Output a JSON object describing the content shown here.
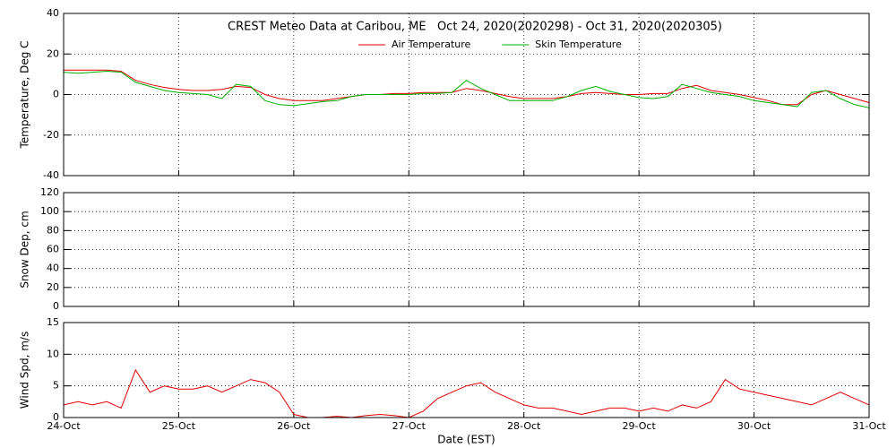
{
  "chart_data": [
    {
      "type": "line",
      "title": "CREST Meteo Data at Caribou, ME   Oct 24, 2020(2020298) - Oct 31, 2020(2020305)",
      "ylabel": "Temperature, Deg C",
      "x": [
        0,
        0.125,
        0.25,
        0.375,
        0.5,
        0.625,
        0.75,
        0.875,
        1,
        1.125,
        1.25,
        1.375,
        1.5,
        1.625,
        1.75,
        1.875,
        2,
        2.125,
        2.25,
        2.375,
        2.5,
        2.625,
        2.75,
        2.875,
        3,
        3.125,
        3.25,
        3.375,
        3.5,
        3.625,
        3.75,
        3.875,
        4,
        4.125,
        4.25,
        4.375,
        4.5,
        4.625,
        4.75,
        4.875,
        5,
        5.125,
        5.25,
        5.375,
        5.5,
        5.625,
        5.75,
        5.875,
        6,
        6.125,
        6.25,
        6.375,
        6.5,
        6.625,
        6.75,
        6.875,
        7
      ],
      "xlim": [
        0,
        7
      ],
      "ylim": [
        -40,
        40
      ],
      "yticks": [
        -40,
        -20,
        0,
        20,
        40
      ],
      "grid": true,
      "series": [
        {
          "name": "Air Temperature",
          "color": "#e00000",
          "values": [
            12,
            12,
            12,
            12,
            11.5,
            7,
            5,
            3.5,
            2.5,
            2,
            2,
            2.5,
            4,
            3.5,
            0,
            -2,
            -3,
            -3,
            -3,
            -2,
            -1,
            0,
            0,
            0.5,
            0.5,
            1,
            1,
            1,
            3,
            2,
            0.5,
            -1,
            -2,
            -2,
            -2,
            -1,
            0.5,
            1,
            0.5,
            0,
            0,
            0.5,
            0.5,
            3,
            4.5,
            2,
            1,
            0,
            -1.5,
            -3,
            -5,
            -5,
            0,
            2,
            0,
            -2,
            -4
          ]
        },
        {
          "name": "Skin Temperature",
          "color": "#00b000",
          "values": [
            11,
            10.5,
            11,
            11.5,
            11,
            6,
            4,
            2,
            1,
            0.5,
            0,
            -2,
            5,
            4,
            -3,
            -5,
            -5.5,
            -4.5,
            -3.5,
            -3,
            -1,
            0,
            0,
            0,
            0,
            0.5,
            0.5,
            1,
            7,
            3,
            0,
            -3,
            -3,
            -3,
            -3,
            -1,
            2,
            4,
            1.5,
            0,
            -1.5,
            -2,
            -1,
            5,
            3,
            1,
            0,
            -1,
            -3,
            -4,
            -5,
            -6,
            1,
            2,
            -2,
            -5,
            -6.5
          ]
        }
      ]
    },
    {
      "type": "line",
      "ylabel": "Snow Dep, cm",
      "x": [
        0,
        0.125,
        0.25,
        0.375,
        0.5,
        0.625,
        0.75,
        0.875,
        1,
        1.125,
        1.25,
        1.375,
        1.5,
        1.625,
        1.75,
        1.875,
        2,
        2.125,
        2.25,
        2.375,
        2.5,
        2.625,
        2.75,
        2.875,
        3,
        3.125,
        3.25,
        3.375,
        3.5,
        3.625,
        3.75,
        3.875,
        4,
        4.125,
        4.25,
        4.375,
        4.5,
        4.625,
        4.75,
        4.875,
        5,
        5.125,
        5.25,
        5.375,
        5.5,
        5.625,
        5.75,
        5.875,
        6,
        6.125,
        6.25,
        6.375,
        6.5,
        6.625,
        6.75,
        6.875,
        7
      ],
      "xlim": [
        0,
        7
      ],
      "ylim": [
        0,
        120
      ],
      "yticks": [
        0,
        20,
        40,
        60,
        80,
        100,
        120
      ],
      "grid": true,
      "series": [
        {
          "color": "#0000e0",
          "values": [
            0,
            0,
            0,
            0,
            0,
            0,
            0,
            0,
            0,
            0,
            0,
            0,
            0,
            0,
            0,
            0,
            0,
            0,
            0,
            0,
            0,
            0,
            0,
            0,
            0,
            0,
            0,
            0,
            0,
            0,
            0,
            0,
            0,
            0,
            0,
            0,
            0,
            0,
            0,
            0,
            0,
            0,
            0,
            0,
            0,
            0,
            0,
            0,
            0,
            0,
            0,
            0,
            0,
            0,
            0,
            0,
            0
          ]
        }
      ]
    },
    {
      "type": "line",
      "ylabel": "Wind Spd, m/s",
      "xlabel": "Date (EST)",
      "x": [
        0,
        0.125,
        0.25,
        0.375,
        0.5,
        0.625,
        0.75,
        0.875,
        1,
        1.125,
        1.25,
        1.375,
        1.5,
        1.625,
        1.75,
        1.875,
        2,
        2.125,
        2.25,
        2.375,
        2.5,
        2.625,
        2.75,
        2.875,
        3,
        3.125,
        3.25,
        3.375,
        3.5,
        3.625,
        3.75,
        3.875,
        4,
        4.125,
        4.25,
        4.375,
        4.5,
        4.625,
        4.75,
        4.875,
        5,
        5.125,
        5.25,
        5.375,
        5.5,
        5.625,
        5.75,
        5.875,
        6,
        6.125,
        6.25,
        6.375,
        6.5,
        6.625,
        6.75,
        6.875,
        7
      ],
      "xlim": [
        0,
        7
      ],
      "xticks": [
        {
          "value": 0,
          "label": "24-Oct"
        },
        {
          "value": 1,
          "label": "25-Oct"
        },
        {
          "value": 2,
          "label": "26-Oct"
        },
        {
          "value": 3,
          "label": "27-Oct"
        },
        {
          "value": 4,
          "label": "28-Oct"
        },
        {
          "value": 5,
          "label": "29-Oct"
        },
        {
          "value": 6,
          "label": "30-Oct"
        },
        {
          "value": 7,
          "label": "31-Oct"
        }
      ],
      "ylim": [
        0,
        15
      ],
      "yticks": [
        0,
        5,
        10,
        15
      ],
      "grid": true,
      "series": [
        {
          "color": "#e00000",
          "values": [
            2,
            2.5,
            2,
            2.5,
            1.5,
            7.5,
            4,
            5,
            4.5,
            4.5,
            5,
            4,
            5,
            6,
            5.5,
            4,
            0.5,
            0,
            0,
            0.2,
            0,
            0.3,
            0.5,
            0.3,
            0,
            1,
            3,
            4,
            5,
            5.5,
            4,
            3,
            2,
            1.5,
            1.5,
            1,
            0.5,
            1,
            1.5,
            1.5,
            1,
            1.5,
            1,
            2,
            1.5,
            2.5,
            6,
            4.5,
            4,
            3.5,
            3,
            2.5,
            2,
            3,
            4,
            3,
            2
          ]
        }
      ]
    }
  ]
}
